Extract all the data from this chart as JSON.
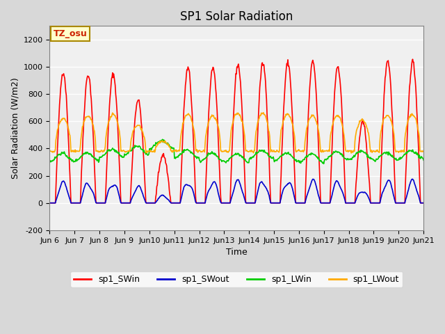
{
  "title": "SP1 Solar Radiation",
  "xlabel": "Time",
  "ylabel": "Solar Radiation (W/m2)",
  "ylim": [
    -200,
    1300
  ],
  "yticks": [
    -200,
    0,
    200,
    400,
    600,
    800,
    1000,
    1200
  ],
  "tz_label": "TZ_osu",
  "bg_color": "#e8e8e8",
  "plot_bg_color": "#f0f0f0",
  "colors": {
    "sp1_SWin": "#ff0000",
    "sp1_SWout": "#0000cc",
    "sp1_LWin": "#00cc00",
    "sp1_LWout": "#ffaa00"
  },
  "linewidth": 1.2,
  "start_day": 6,
  "end_day": 21,
  "num_days": 15,
  "time_step_minutes": 30
}
